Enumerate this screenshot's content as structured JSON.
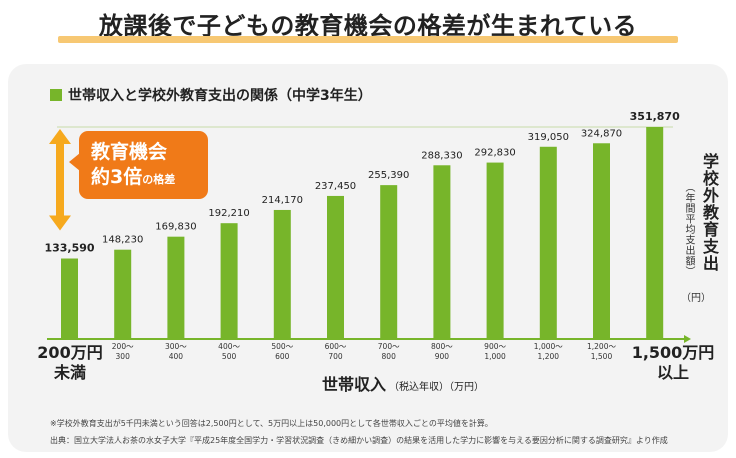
{
  "title": "放課後で子どもの教育機会の格差が生まれている",
  "colors": {
    "bar": "#77b52a",
    "accent": "#f07a18",
    "arrow": "#f6a91d",
    "highlight": "#f7c873",
    "panel": "#f3f3f3"
  },
  "chart_data": {
    "type": "bar",
    "title": "世帯収入と学校外教育支出の関係（中学3年生）",
    "series_name": "世帯収入と学校外教育支出の関係（中学3年生）",
    "categories": [
      "200万円未満",
      "200～300",
      "300～400",
      "400～500",
      "500～600",
      "600～700",
      "700～800",
      "800～900",
      "900～1,000",
      "1,000～1,200",
      "1,200～1,500",
      "1,500万円以上"
    ],
    "tick_labels": [
      {
        "line1": "",
        "line2": ""
      },
      {
        "line1": "200～",
        "line2": "300"
      },
      {
        "line1": "300～",
        "line2": "400"
      },
      {
        "line1": "400～",
        "line2": "500"
      },
      {
        "line1": "500～",
        "line2": "600"
      },
      {
        "line1": "600～",
        "line2": "700"
      },
      {
        "line1": "700～",
        "line2": "800"
      },
      {
        "line1": "800～",
        "line2": "900"
      },
      {
        "line1": "900～",
        "line2": "1,000"
      },
      {
        "line1": "1,000～",
        "line2": "1,200"
      },
      {
        "line1": "1,200～",
        "line2": "1,500"
      },
      {
        "line1": "",
        "line2": ""
      }
    ],
    "values": [
      133590,
      148230,
      169830,
      192210,
      214170,
      237450,
      255390,
      288330,
      292830,
      319050,
      324870,
      351870
    ],
    "value_labels": [
      "133,590",
      "148,230",
      "169,830",
      "192,210",
      "214,170",
      "237,450",
      "255,390",
      "288,330",
      "292,830",
      "319,050",
      "324,870",
      "351,870"
    ],
    "ylim": [
      0,
      351870
    ],
    "xlabel": "世帯収入",
    "xlabel_sub": "（税込年収）（万円）",
    "ylabel": "学校外教育支出",
    "ylabel_sub": "（年間平均支出額）",
    "ylabel_unit": "（円）",
    "x_end_left": [
      "200万円",
      "未満"
    ],
    "x_end_right": [
      "1,500万円",
      "以上"
    ],
    "annotation": {
      "line1": "教育機会",
      "line2_main": "約3倍",
      "line2_sub": "の格差"
    }
  },
  "footnote": "※学校外教育支出が5千円未満という回答は2,500円として、5万円以上は50,000円として各世帯収入ごとの平均値を計算。",
  "source": "出典：国立大学法人お茶の水女子大学『平成25年度全国学力・学習状況調査（きめ細かい調査）の結果を活用した学力に影響を与える要因分析に関する調査研究』より作成"
}
